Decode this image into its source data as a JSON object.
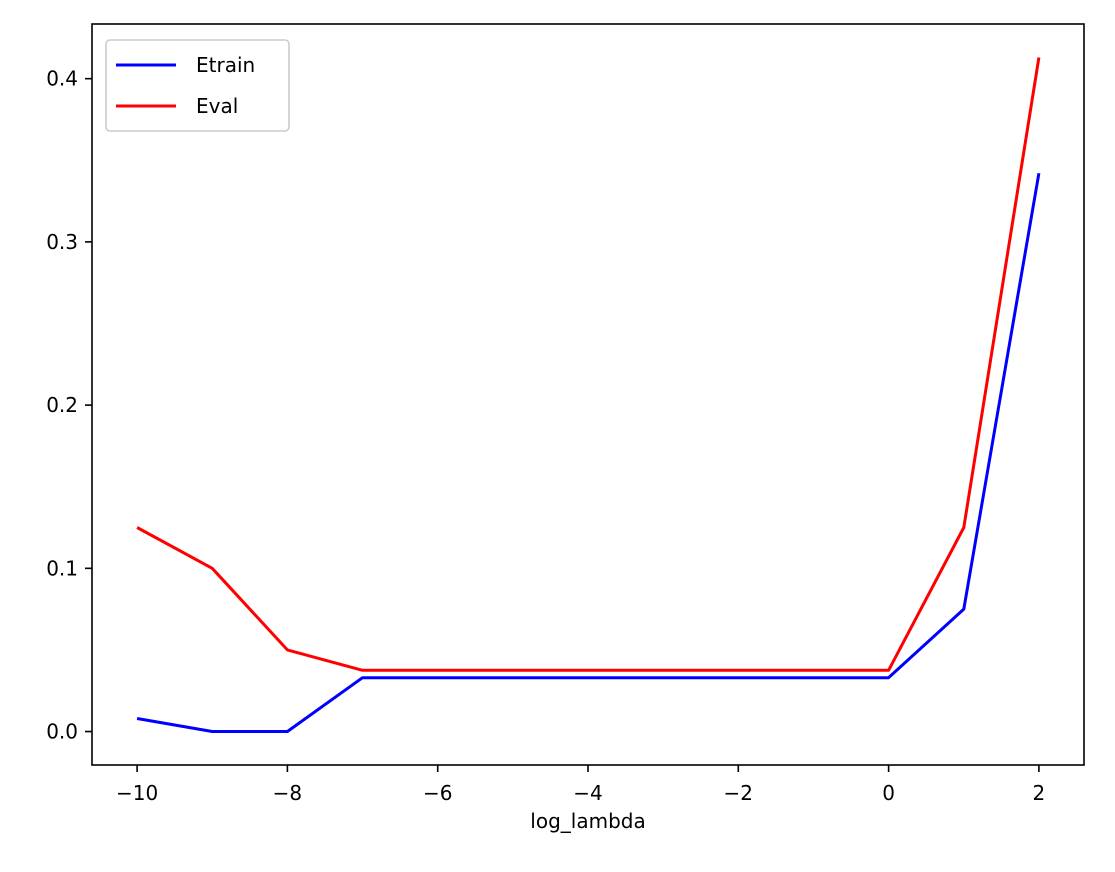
{
  "chart_data": {
    "type": "line",
    "title": "",
    "xlabel": "log_lambda",
    "ylabel": "",
    "x": [
      -10,
      -9,
      -8,
      -7,
      -6,
      -5,
      -4,
      -3,
      -2,
      -1,
      0,
      1,
      2
    ],
    "xlim": [
      -10.6,
      2.6
    ],
    "ylim": [
      -0.0205,
      0.4335
    ],
    "xticks": [
      -10,
      -8,
      -6,
      -4,
      -2,
      0,
      2
    ],
    "xtick_labels": [
      "−10",
      "−8",
      "−6",
      "−4",
      "−2",
      "0",
      "2"
    ],
    "yticks": [
      0.0,
      0.1,
      0.2,
      0.3,
      0.4
    ],
    "ytick_labels": [
      "0.0",
      "0.1",
      "0.2",
      "0.3",
      "0.4"
    ],
    "grid": false,
    "legend_position": "top-left",
    "series": [
      {
        "name": "Etrain",
        "color": "#0000ff",
        "values": [
          0.008,
          0.0,
          0.0,
          0.033,
          0.033,
          0.033,
          0.033,
          0.033,
          0.033,
          0.033,
          0.033,
          0.075,
          0.342
        ]
      },
      {
        "name": "Eval",
        "color": "#ff0000",
        "values": [
          0.125,
          0.1,
          0.05,
          0.0375,
          0.0375,
          0.0375,
          0.0375,
          0.0375,
          0.0375,
          0.0375,
          0.0375,
          0.125,
          0.413
        ]
      }
    ]
  }
}
